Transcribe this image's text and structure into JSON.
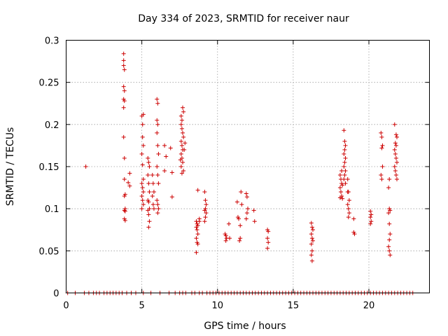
{
  "chart_data": {
    "type": "scatter",
    "title": "Day 334 of 2023, SRMTID for receiver naur",
    "xlabel": "GPS time / hours",
    "ylabel": "SRMTID / TECUs",
    "xlim": [
      0,
      24
    ],
    "ylim": [
      0,
      0.3
    ],
    "xticks": [
      0,
      5,
      10,
      15,
      20
    ],
    "xtick_labels": [
      "0",
      "5",
      "10",
      "15",
      "20"
    ],
    "yticks": [
      0,
      0.05,
      0.1,
      0.15,
      0.2,
      0.25,
      0.3
    ],
    "ytick_labels": [
      "0",
      "0.05",
      "0.1",
      "0.15",
      "0.2",
      "0.25",
      "0.3"
    ],
    "grid": true,
    "colors": {
      "series": "#cc0000",
      "grid": "#a0a0a0",
      "axis": "#000000"
    },
    "series": [
      {
        "name": "SRMTID",
        "marker": "plus",
        "points": [
          [
            1.3,
            0.15
          ],
          [
            3.8,
            0.284
          ],
          [
            3.8,
            0.276
          ],
          [
            3.8,
            0.27
          ],
          [
            3.85,
            0.265
          ],
          [
            3.8,
            0.245
          ],
          [
            3.85,
            0.24
          ],
          [
            3.8,
            0.23
          ],
          [
            3.85,
            0.228
          ],
          [
            3.8,
            0.22
          ],
          [
            3.8,
            0.185
          ],
          [
            3.85,
            0.16
          ],
          [
            3.85,
            0.135
          ],
          [
            3.9,
            0.117
          ],
          [
            3.85,
            0.115
          ],
          [
            3.9,
            0.1
          ],
          [
            3.85,
            0.098
          ],
          [
            3.9,
            0.097
          ],
          [
            3.85,
            0.088
          ],
          [
            3.9,
            0.086
          ],
          [
            4.1,
            0.131
          ],
          [
            4.2,
            0.142
          ],
          [
            4.2,
            0.127
          ],
          [
            5.0,
            0.21
          ],
          [
            5.05,
            0.2
          ],
          [
            5.1,
            0.212
          ],
          [
            5.05,
            0.185
          ],
          [
            5.1,
            0.175
          ],
          [
            5.0,
            0.165
          ],
          [
            5.05,
            0.152
          ],
          [
            5.1,
            0.135
          ],
          [
            5.0,
            0.13
          ],
          [
            5.05,
            0.125
          ],
          [
            5.1,
            0.12
          ],
          [
            5.0,
            0.115
          ],
          [
            5.05,
            0.11
          ],
          [
            5.1,
            0.105
          ],
          [
            5.0,
            0.1
          ],
          [
            5.4,
            0.16
          ],
          [
            5.45,
            0.155
          ],
          [
            5.5,
            0.15
          ],
          [
            5.4,
            0.14
          ],
          [
            5.45,
            0.13
          ],
          [
            5.5,
            0.12
          ],
          [
            5.4,
            0.11
          ],
          [
            5.45,
            0.108
          ],
          [
            5.5,
            0.1
          ],
          [
            5.4,
            0.098
          ],
          [
            5.45,
            0.093
          ],
          [
            5.5,
            0.085
          ],
          [
            5.45,
            0.078
          ],
          [
            5.7,
            0.14
          ],
          [
            5.75,
            0.13
          ],
          [
            5.8,
            0.12
          ],
          [
            5.7,
            0.115
          ],
          [
            5.75,
            0.105
          ],
          [
            5.8,
            0.1
          ],
          [
            6.0,
            0.23
          ],
          [
            6.05,
            0.225
          ],
          [
            6.0,
            0.205
          ],
          [
            6.05,
            0.2
          ],
          [
            6.0,
            0.19
          ],
          [
            6.05,
            0.175
          ],
          [
            6.1,
            0.165
          ],
          [
            6.0,
            0.15
          ],
          [
            6.05,
            0.14
          ],
          [
            6.1,
            0.13
          ],
          [
            6.0,
            0.11
          ],
          [
            6.05,
            0.105
          ],
          [
            6.1,
            0.1
          ],
          [
            6.05,
            0.095
          ],
          [
            6.5,
            0.175
          ],
          [
            6.6,
            0.162
          ],
          [
            6.5,
            0.145
          ],
          [
            6.9,
            0.172
          ],
          [
            7.0,
            0.143
          ],
          [
            7.0,
            0.114
          ],
          [
            7.6,
            0.21
          ],
          [
            7.65,
            0.205
          ],
          [
            7.7,
            0.22
          ],
          [
            7.75,
            0.215
          ],
          [
            7.6,
            0.2
          ],
          [
            7.65,
            0.195
          ],
          [
            7.7,
            0.19
          ],
          [
            7.75,
            0.185
          ],
          [
            7.6,
            0.18
          ],
          [
            7.65,
            0.175
          ],
          [
            7.7,
            0.17
          ],
          [
            7.6,
            0.165
          ],
          [
            7.65,
            0.16
          ],
          [
            7.7,
            0.155
          ],
          [
            7.75,
            0.145
          ],
          [
            7.8,
            0.17
          ],
          [
            7.85,
            0.178
          ],
          [
            7.55,
            0.158
          ],
          [
            7.6,
            0.15
          ],
          [
            7.65,
            0.142
          ],
          [
            8.6,
            0.085
          ],
          [
            8.65,
            0.082
          ],
          [
            8.7,
            0.08
          ],
          [
            8.6,
            0.078
          ],
          [
            8.65,
            0.075
          ],
          [
            8.7,
            0.07
          ],
          [
            8.6,
            0.065
          ],
          [
            8.65,
            0.06
          ],
          [
            8.7,
            0.058
          ],
          [
            8.6,
            0.048
          ],
          [
            8.7,
            0.122
          ],
          [
            8.8,
            0.088
          ],
          [
            8.8,
            0.085
          ],
          [
            9.15,
            0.12
          ],
          [
            9.2,
            0.11
          ],
          [
            9.25,
            0.105
          ],
          [
            9.2,
            0.1
          ],
          [
            9.15,
            0.098
          ],
          [
            9.25,
            0.095
          ],
          [
            9.2,
            0.09
          ],
          [
            9.15,
            0.085
          ],
          [
            10.5,
            0.07
          ],
          [
            10.55,
            0.068
          ],
          [
            10.6,
            0.065
          ],
          [
            10.55,
            0.062
          ],
          [
            10.8,
            0.065
          ],
          [
            10.75,
            0.082
          ],
          [
            11.3,
            0.108
          ],
          [
            11.35,
            0.09
          ],
          [
            11.4,
            0.088
          ],
          [
            11.5,
            0.08
          ],
          [
            11.5,
            0.065
          ],
          [
            11.45,
            0.062
          ],
          [
            11.55,
            0.12
          ],
          [
            11.6,
            0.105
          ],
          [
            11.9,
            0.118
          ],
          [
            11.95,
            0.114
          ],
          [
            12.0,
            0.1
          ],
          [
            11.95,
            0.095
          ],
          [
            11.9,
            0.088
          ],
          [
            12.4,
            0.098
          ],
          [
            12.45,
            0.085
          ],
          [
            13.3,
            0.075
          ],
          [
            13.35,
            0.073
          ],
          [
            13.3,
            0.065
          ],
          [
            13.35,
            0.06
          ],
          [
            13.3,
            0.053
          ],
          [
            16.2,
            0.083
          ],
          [
            16.25,
            0.078
          ],
          [
            16.3,
            0.075
          ],
          [
            16.2,
            0.07
          ],
          [
            16.25,
            0.065
          ],
          [
            16.3,
            0.062
          ],
          [
            16.2,
            0.058
          ],
          [
            16.25,
            0.05
          ],
          [
            16.2,
            0.045
          ],
          [
            16.25,
            0.038
          ],
          [
            18.1,
            0.14
          ],
          [
            18.15,
            0.135
          ],
          [
            18.2,
            0.13
          ],
          [
            18.25,
            0.128
          ],
          [
            18.1,
            0.125
          ],
          [
            18.15,
            0.12
          ],
          [
            18.2,
            0.115
          ],
          [
            18.25,
            0.112
          ],
          [
            18.1,
            0.113
          ],
          [
            18.2,
            0.145
          ],
          [
            18.35,
            0.193
          ],
          [
            18.4,
            0.18
          ],
          [
            18.45,
            0.175
          ],
          [
            18.4,
            0.17
          ],
          [
            18.35,
            0.165
          ],
          [
            18.45,
            0.16
          ],
          [
            18.4,
            0.155
          ],
          [
            18.35,
            0.15
          ],
          [
            18.45,
            0.145
          ],
          [
            18.4,
            0.14
          ],
          [
            18.35,
            0.135
          ],
          [
            18.45,
            0.13
          ],
          [
            18.6,
            0.135
          ],
          [
            18.65,
            0.12
          ],
          [
            18.7,
            0.11
          ],
          [
            18.6,
            0.105
          ],
          [
            18.65,
            0.1
          ],
          [
            18.7,
            0.095
          ],
          [
            18.65,
            0.09
          ],
          [
            18.6,
            0.12
          ],
          [
            19.0,
            0.088
          ],
          [
            19.0,
            0.072
          ],
          [
            19.05,
            0.07
          ],
          [
            20.1,
            0.097
          ],
          [
            20.15,
            0.093
          ],
          [
            20.1,
            0.09
          ],
          [
            20.15,
            0.085
          ],
          [
            20.1,
            0.082
          ],
          [
            20.8,
            0.19
          ],
          [
            20.85,
            0.185
          ],
          [
            20.9,
            0.175
          ],
          [
            20.85,
            0.172
          ],
          [
            20.9,
            0.15
          ],
          [
            20.8,
            0.14
          ],
          [
            20.85,
            0.135
          ],
          [
            21.35,
            0.135
          ],
          [
            21.3,
            0.125
          ],
          [
            21.35,
            0.1
          ],
          [
            21.4,
            0.098
          ],
          [
            21.3,
            0.095
          ],
          [
            21.35,
            0.082
          ],
          [
            21.4,
            0.07
          ],
          [
            21.35,
            0.063
          ],
          [
            21.3,
            0.055
          ],
          [
            21.35,
            0.05
          ],
          [
            21.4,
            0.045
          ],
          [
            21.7,
            0.2
          ],
          [
            21.8,
            0.188
          ],
          [
            21.85,
            0.185
          ],
          [
            21.75,
            0.178
          ],
          [
            21.8,
            0.175
          ],
          [
            21.7,
            0.17
          ],
          [
            21.75,
            0.165
          ],
          [
            21.8,
            0.16
          ],
          [
            21.85,
            0.155
          ],
          [
            21.7,
            0.15
          ],
          [
            21.75,
            0.145
          ],
          [
            21.8,
            0.14
          ],
          [
            21.85,
            0.135
          ]
        ]
      }
    ],
    "zero_line_points": [
      [
        0.1,
        0
      ],
      [
        0.6,
        0
      ],
      [
        1.2,
        0
      ],
      [
        1.5,
        0
      ],
      [
        1.8,
        0
      ],
      [
        2.0,
        0
      ],
      [
        2.2,
        0
      ],
      [
        2.5,
        0
      ],
      [
        2.7,
        0
      ],
      [
        2.9,
        0
      ],
      [
        3.1,
        0
      ],
      [
        3.3,
        0
      ],
      [
        3.5,
        0
      ],
      [
        3.7,
        0
      ],
      [
        4.0,
        0
      ],
      [
        4.3,
        0
      ],
      [
        4.6,
        0
      ],
      [
        5.1,
        0
      ],
      [
        5.6,
        0
      ],
      [
        6.2,
        0
      ],
      [
        6.8,
        0
      ],
      [
        7.2,
        0
      ],
      [
        7.5,
        0
      ],
      [
        7.7,
        0
      ],
      [
        7.9,
        0
      ],
      [
        8.3,
        0
      ],
      [
        8.5,
        0
      ],
      [
        8.8,
        0
      ],
      [
        9.0,
        0
      ],
      [
        9.3,
        0
      ],
      [
        9.5,
        0
      ],
      [
        9.7,
        0
      ],
      [
        9.9,
        0
      ],
      [
        10.1,
        0
      ],
      [
        10.3,
        0
      ],
      [
        10.5,
        0
      ],
      [
        10.7,
        0
      ],
      [
        10.9,
        0
      ],
      [
        11.1,
        0
      ],
      [
        11.3,
        0
      ],
      [
        11.5,
        0
      ],
      [
        11.7,
        0
      ],
      [
        11.9,
        0
      ],
      [
        12.1,
        0
      ],
      [
        12.3,
        0
      ],
      [
        12.5,
        0
      ],
      [
        12.7,
        0
      ],
      [
        12.9,
        0
      ],
      [
        13.1,
        0
      ],
      [
        13.3,
        0
      ],
      [
        13.5,
        0
      ],
      [
        13.7,
        0
      ],
      [
        13.9,
        0
      ],
      [
        14.1,
        0
      ],
      [
        14.3,
        0
      ],
      [
        14.5,
        0
      ],
      [
        14.7,
        0
      ],
      [
        14.9,
        0
      ],
      [
        15.1,
        0
      ],
      [
        15.3,
        0
      ],
      [
        15.5,
        0
      ],
      [
        15.7,
        0
      ],
      [
        15.9,
        0
      ],
      [
        16.1,
        0
      ],
      [
        16.3,
        0
      ],
      [
        16.5,
        0
      ],
      [
        16.7,
        0
      ],
      [
        16.9,
        0
      ],
      [
        17.1,
        0
      ],
      [
        17.3,
        0
      ],
      [
        17.5,
        0
      ],
      [
        17.7,
        0
      ],
      [
        17.9,
        0
      ],
      [
        18.1,
        0
      ],
      [
        18.3,
        0
      ],
      [
        18.5,
        0
      ],
      [
        18.7,
        0
      ],
      [
        18.9,
        0
      ],
      [
        19.1,
        0
      ],
      [
        19.3,
        0
      ],
      [
        19.5,
        0
      ],
      [
        19.7,
        0
      ],
      [
        19.9,
        0
      ],
      [
        20.1,
        0
      ],
      [
        20.3,
        0
      ],
      [
        20.5,
        0
      ],
      [
        20.7,
        0
      ],
      [
        20.9,
        0
      ],
      [
        21.1,
        0
      ],
      [
        21.3,
        0
      ],
      [
        21.5,
        0
      ],
      [
        21.7,
        0
      ],
      [
        21.9,
        0
      ],
      [
        22.1,
        0
      ],
      [
        22.3,
        0
      ],
      [
        22.5,
        0
      ],
      [
        22.7,
        0
      ],
      [
        22.9,
        0
      ]
    ]
  }
}
